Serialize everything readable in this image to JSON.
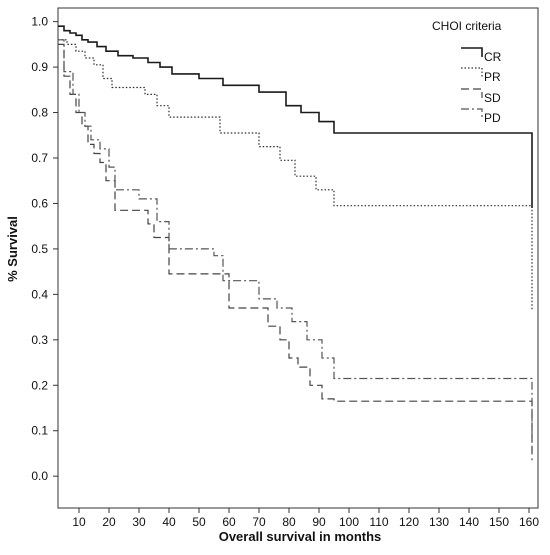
{
  "chart_data": {
    "type": "line",
    "xlabel": "Overall survival in months",
    "ylabel": "% Survival",
    "xlim": [
      3,
      163
    ],
    "ylim": [
      -0.07,
      1.03
    ],
    "x_ticks": [
      10,
      20,
      30,
      40,
      50,
      60,
      70,
      80,
      90,
      100,
      110,
      120,
      130,
      140,
      150,
      160
    ],
    "y_ticks": [
      0.0,
      0.1,
      0.2,
      0.3,
      0.4,
      0.5,
      0.6,
      0.7,
      0.8,
      0.9,
      1.0
    ],
    "y_tick_labels": [
      "0.0",
      "0.1",
      "0.2",
      "0.3",
      "0.4",
      "0.5",
      "0.6",
      "0.7",
      "0.8",
      "0.9",
      "1.0"
    ],
    "grid": false,
    "legend": {
      "title": "CHOI criteria",
      "position": "top-right"
    },
    "series": [
      {
        "name": "CR",
        "style": "solid",
        "color": "#1a1a1a",
        "x": [
          3,
          5,
          7,
          9,
          11,
          13,
          16,
          19,
          23,
          28,
          33,
          37,
          41,
          50,
          58,
          70,
          79,
          84,
          90,
          95,
          161,
          161
        ],
        "y": [
          0.99,
          0.98,
          0.975,
          0.97,
          0.96,
          0.955,
          0.945,
          0.935,
          0.925,
          0.92,
          0.91,
          0.9,
          0.885,
          0.875,
          0.86,
          0.845,
          0.815,
          0.8,
          0.78,
          0.755,
          0.755,
          0.59
        ]
      },
      {
        "name": "PR",
        "style": "dotted",
        "color": "#2b2b2b",
        "x": [
          3,
          6,
          9,
          12,
          15,
          18,
          21,
          32,
          36,
          40,
          57,
          70,
          77,
          82,
          89,
          95,
          161,
          161
        ],
        "y": [
          0.96,
          0.95,
          0.935,
          0.92,
          0.905,
          0.875,
          0.855,
          0.84,
          0.815,
          0.79,
          0.755,
          0.725,
          0.695,
          0.66,
          0.63,
          0.595,
          0.595,
          0.365
        ]
      },
      {
        "name": "SD",
        "style": "longdash",
        "color": "#444444",
        "x": [
          3,
          5,
          7,
          9,
          11,
          13,
          15,
          17,
          19,
          22,
          28,
          33,
          35,
          40,
          55,
          60,
          73,
          77,
          80,
          83,
          87,
          91,
          95,
          161,
          161
        ],
        "y": [
          0.95,
          0.88,
          0.84,
          0.8,
          0.77,
          0.73,
          0.71,
          0.69,
          0.65,
          0.585,
          0.585,
          0.555,
          0.525,
          0.445,
          0.445,
          0.37,
          0.33,
          0.3,
          0.26,
          0.24,
          0.2,
          0.17,
          0.165,
          0.165,
          0.035
        ]
      },
      {
        "name": "PD",
        "style": "dashdot",
        "color": "#555555",
        "x": [
          3,
          5,
          8,
          10,
          12,
          14,
          17,
          20,
          22,
          25,
          30,
          36,
          40,
          43,
          55,
          58,
          70,
          76,
          81,
          86,
          91,
          95,
          161,
          161
        ],
        "y": [
          0.96,
          0.89,
          0.84,
          0.8,
          0.77,
          0.74,
          0.72,
          0.68,
          0.63,
          0.63,
          0.61,
          0.56,
          0.5,
          0.5,
          0.485,
          0.43,
          0.39,
          0.37,
          0.34,
          0.3,
          0.26,
          0.215,
          0.215,
          0.055
        ]
      }
    ]
  }
}
